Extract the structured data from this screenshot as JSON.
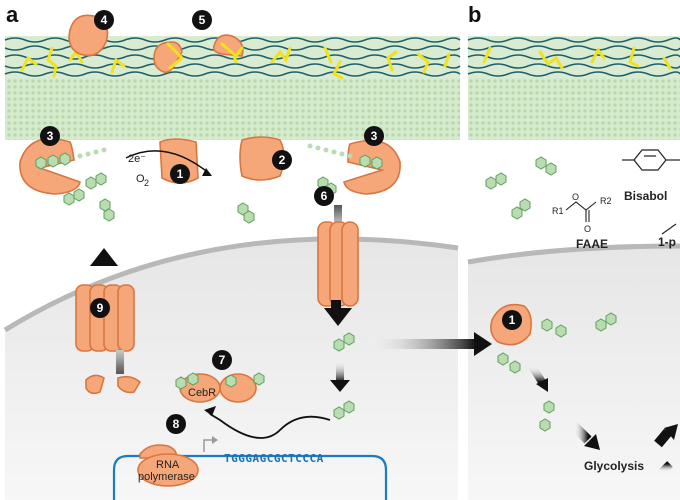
{
  "panels": {
    "a": "a",
    "b": "b"
  },
  "badges": [
    "1",
    "2",
    "3",
    "3",
    "4",
    "5",
    "6",
    "7",
    "8",
    "9"
  ],
  "panel_b_badge": "1",
  "labels": {
    "electrons": "2e⁻",
    "oxygen": "O",
    "oxygen_sub": "2",
    "cebr": "CebR",
    "rna_line1": "RNA",
    "rna_line2": "polymerase",
    "sequence": "TGGGAGCGCTCCCA",
    "glycolysis": "Glycolysis",
    "faae": "FAAE",
    "bisabolene": "Bisabol",
    "onep": "1-p",
    "r1": "R1",
    "r2": "R2",
    "o_top": "O",
    "o_bottom": "O"
  },
  "colors": {
    "protein": "#f5a77a",
    "protein_stroke": "#d9763f",
    "membrane": "#cfe6c5",
    "wave": "#1f5f6a",
    "lipid": "#f0e21b",
    "hexagon": "#b9dcb0",
    "sequence": "#1a6fb5",
    "dna": "#1a7cc3"
  }
}
